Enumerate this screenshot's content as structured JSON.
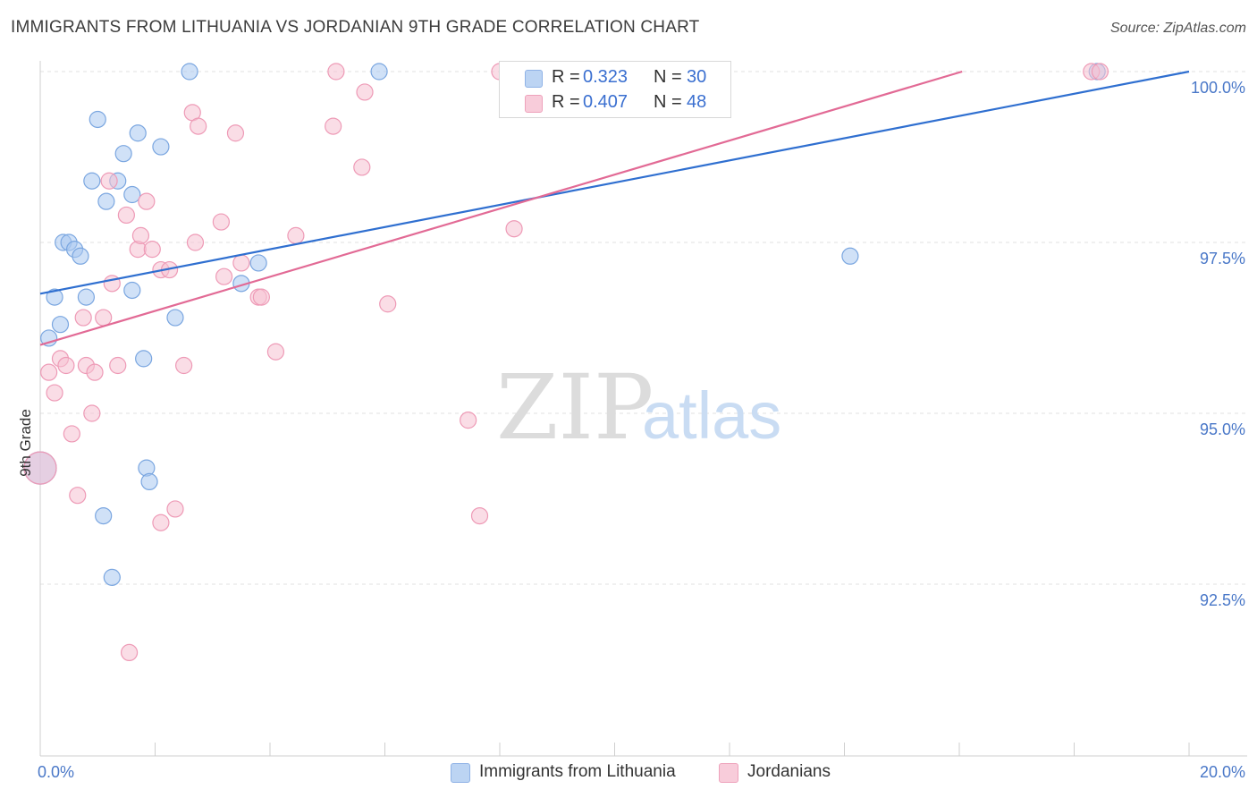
{
  "title": "IMMIGRANTS FROM LITHUANIA VS JORDANIAN 9TH GRADE CORRELATION CHART",
  "source": "Source: ZipAtlas.com",
  "watermark": {
    "zip": "ZIP",
    "atlas": "atlas"
  },
  "colors": {
    "blue_fill": "#aac8f0",
    "blue_stroke": "#7aa6e0",
    "blue_line": "#2f6fd0",
    "pink_fill": "#f6c1d2",
    "pink_stroke": "#ee9ab6",
    "pink_line": "#e26a95",
    "tick_text": "#4a78c8",
    "grid": "#e2e2e2"
  },
  "legend": {
    "rows": [
      {
        "r_label": "R =",
        "r_value": "0.323",
        "n_label": "N =",
        "n_value": "30"
      },
      {
        "r_label": "R =",
        "r_value": "0.407",
        "n_label": "N =",
        "n_value": "48"
      }
    ]
  },
  "bottom_legend": [
    {
      "label": "Immigrants from Lithuania"
    },
    {
      "label": "Jordanians"
    }
  ],
  "chart_data": {
    "type": "scatter",
    "title": "IMMIGRANTS FROM LITHUANIA VS JORDANIAN 9TH GRADE CORRELATION CHART",
    "xlabel": "",
    "ylabel": "9th Grade",
    "xlim": [
      0.0,
      20.0
    ],
    "ylim": [
      90.0,
      100.25
    ],
    "x_tick_labels": [
      "0.0%",
      "20.0%"
    ],
    "y_ticks": [
      92.5,
      95.0,
      97.5,
      100.0
    ],
    "y_tick_labels": [
      "92.5%",
      "95.0%",
      "97.5%",
      "100.0%"
    ],
    "series": [
      {
        "name": "Immigrants from Lithuania",
        "points": [
          [
            0.0,
            94.2
          ],
          [
            0.15,
            96.1
          ],
          [
            0.25,
            96.7
          ],
          [
            0.35,
            96.3
          ],
          [
            0.4,
            97.5
          ],
          [
            0.5,
            97.5
          ],
          [
            0.6,
            97.4
          ],
          [
            0.7,
            97.3
          ],
          [
            0.8,
            96.7
          ],
          [
            0.9,
            98.4
          ],
          [
            1.0,
            99.3
          ],
          [
            1.1,
            93.5
          ],
          [
            1.15,
            98.1
          ],
          [
            1.25,
            92.6
          ],
          [
            1.35,
            98.4
          ],
          [
            1.45,
            98.8
          ],
          [
            1.6,
            96.8
          ],
          [
            1.6,
            98.2
          ],
          [
            1.7,
            99.1
          ],
          [
            1.8,
            95.8
          ],
          [
            1.85,
            94.2
          ],
          [
            1.9,
            94.0
          ],
          [
            2.1,
            98.9
          ],
          [
            2.35,
            96.4
          ],
          [
            2.6,
            100.0
          ],
          [
            3.5,
            96.9
          ],
          [
            3.8,
            97.2
          ],
          [
            5.9,
            100.0
          ],
          [
            14.1,
            97.3
          ],
          [
            18.4,
            100.0
          ]
        ],
        "trend": {
          "x": [
            0.0,
            20.0
          ],
          "y": [
            96.75,
            100.0
          ]
        }
      },
      {
        "name": "Jordanians",
        "points": [
          [
            0.0,
            94.2
          ],
          [
            0.15,
            95.6
          ],
          [
            0.25,
            95.3
          ],
          [
            0.35,
            95.8
          ],
          [
            0.45,
            95.7
          ],
          [
            0.55,
            94.7
          ],
          [
            0.65,
            93.8
          ],
          [
            0.75,
            96.4
          ],
          [
            0.8,
            95.7
          ],
          [
            0.9,
            95.0
          ],
          [
            0.95,
            95.6
          ],
          [
            1.1,
            96.4
          ],
          [
            1.2,
            98.4
          ],
          [
            1.25,
            96.9
          ],
          [
            1.35,
            95.7
          ],
          [
            1.5,
            97.9
          ],
          [
            1.55,
            91.5
          ],
          [
            1.7,
            97.4
          ],
          [
            1.75,
            97.6
          ],
          [
            1.85,
            98.1
          ],
          [
            1.95,
            97.4
          ],
          [
            2.1,
            93.4
          ],
          [
            2.1,
            97.1
          ],
          [
            2.25,
            97.1
          ],
          [
            2.35,
            93.6
          ],
          [
            2.5,
            95.7
          ],
          [
            2.65,
            99.4
          ],
          [
            2.7,
            97.5
          ],
          [
            2.75,
            99.2
          ],
          [
            3.15,
            97.8
          ],
          [
            3.2,
            97.0
          ],
          [
            3.4,
            99.1
          ],
          [
            3.5,
            97.2
          ],
          [
            3.8,
            96.7
          ],
          [
            3.85,
            96.7
          ],
          [
            4.1,
            95.9
          ],
          [
            4.45,
            97.6
          ],
          [
            5.1,
            99.2
          ],
          [
            5.15,
            100.0
          ],
          [
            5.6,
            98.6
          ],
          [
            5.65,
            99.7
          ],
          [
            6.05,
            96.6
          ],
          [
            7.45,
            94.9
          ],
          [
            7.65,
            93.5
          ],
          [
            8.0,
            100.0
          ],
          [
            8.25,
            97.7
          ],
          [
            18.3,
            100.0
          ],
          [
            18.45,
            100.0
          ]
        ],
        "trend": {
          "x": [
            0.0,
            16.05
          ],
          "y": [
            96.0,
            100.0
          ]
        }
      }
    ]
  }
}
